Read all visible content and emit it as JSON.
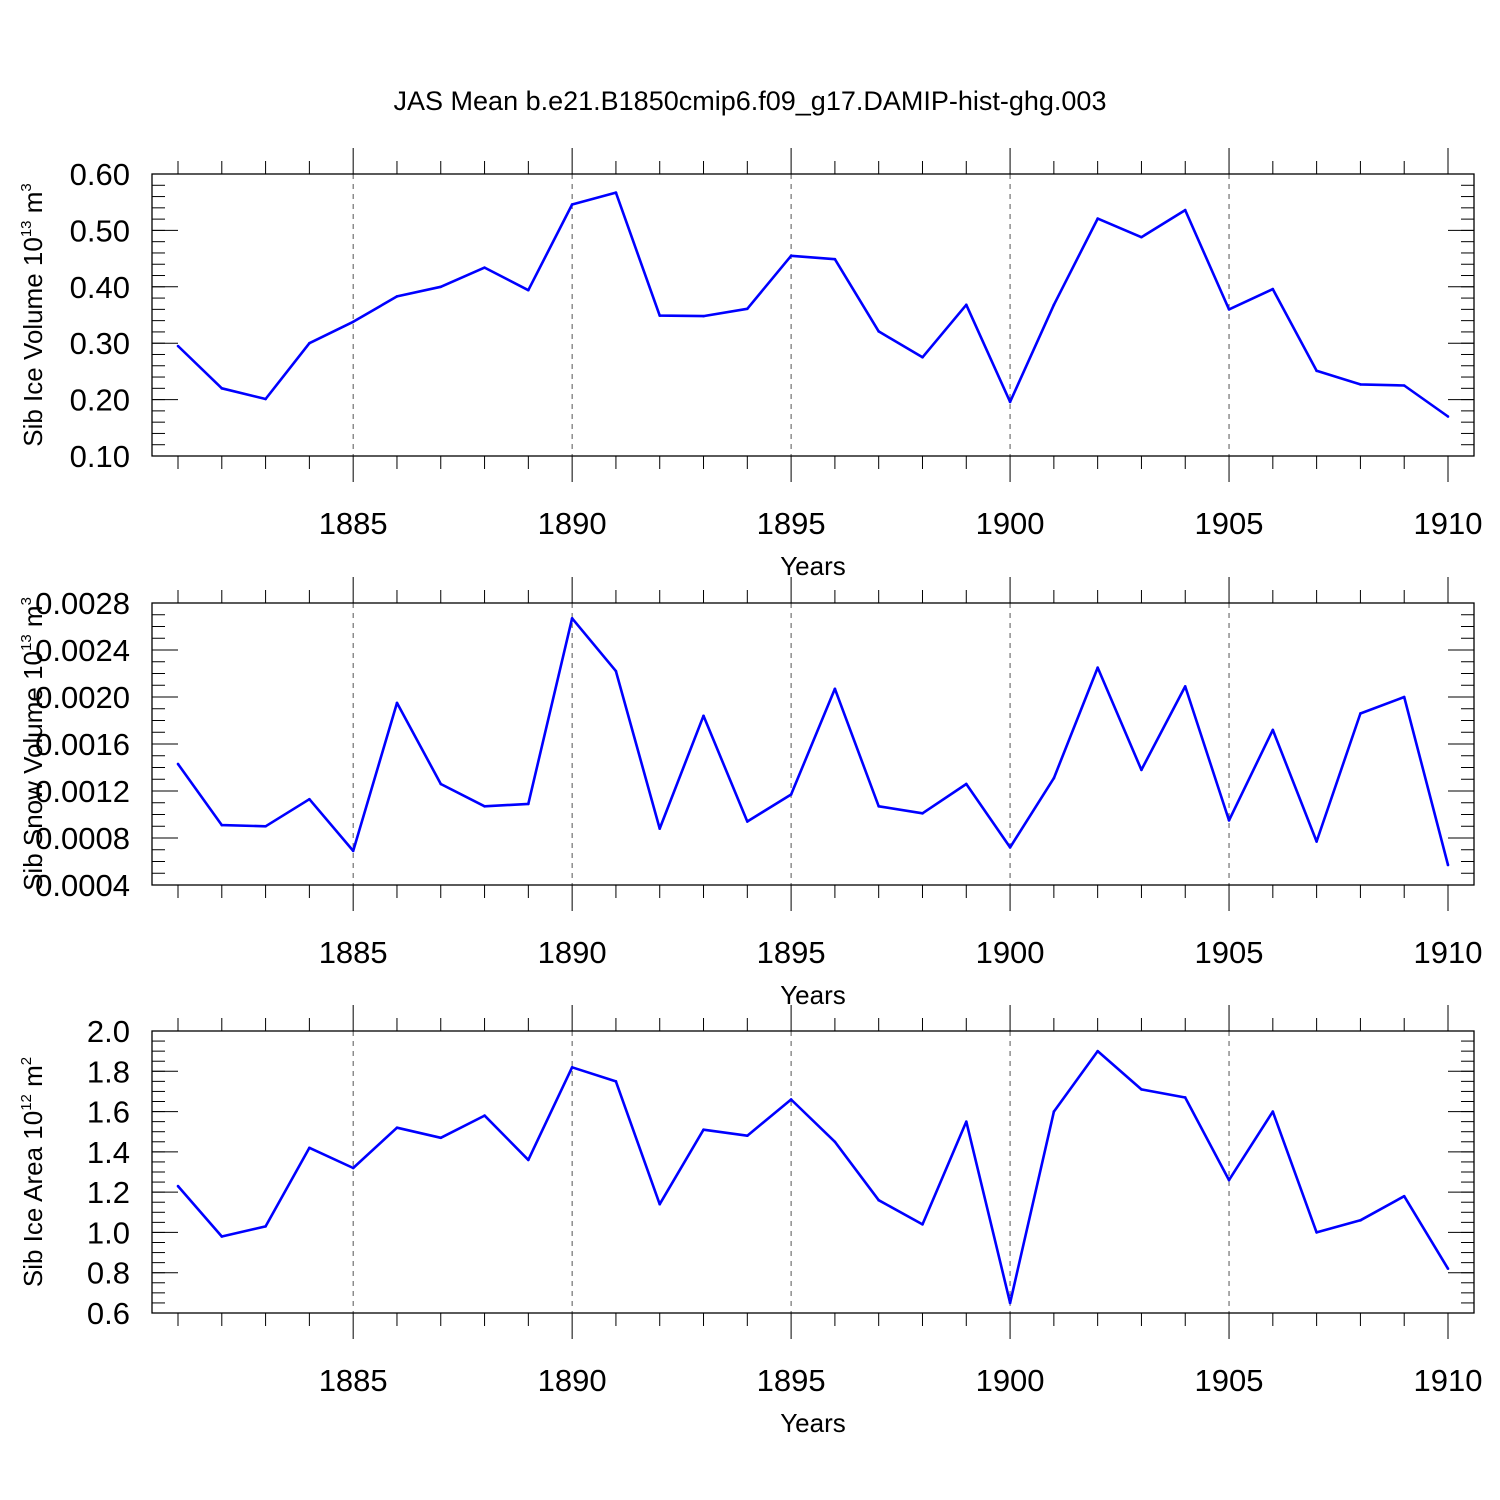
{
  "title": "JAS Mean b.e21.B1850cmip6.f09_g17.DAMIP-hist-ghg.003",
  "colors": {
    "line": "#0000ff",
    "axis": "#000000",
    "grid": "#555555"
  },
  "chart_data": [
    {
      "type": "line",
      "ylabel": "Sib Ice Volume 10",
      "ylabel_sup": "13",
      "ylabel_unit": " m",
      "ylabel_unit_sup": "3",
      "xlabel": "Years",
      "xlim": [
        1881,
        1910
      ],
      "ylim": [
        0.1,
        0.6
      ],
      "xticks": [
        1885,
        1890,
        1895,
        1900,
        1905,
        1910
      ],
      "xtick_labels": [
        "1885",
        "1890",
        "1895",
        "1900",
        "1905",
        "1910"
      ],
      "yticks": [
        0.1,
        0.2,
        0.3,
        0.4,
        0.5,
        0.6
      ],
      "ytick_labels": [
        "0.10",
        "0.20",
        "0.30",
        "0.40",
        "0.50",
        "0.60"
      ],
      "y_minor_step": 0.02,
      "grid": "vertical dashed at major x ticks",
      "x": [
        1881,
        1882,
        1883,
        1884,
        1885,
        1886,
        1887,
        1888,
        1889,
        1890,
        1891,
        1892,
        1893,
        1894,
        1895,
        1896,
        1897,
        1898,
        1899,
        1900,
        1901,
        1902,
        1903,
        1904,
        1905,
        1906,
        1907,
        1908,
        1909,
        1910
      ],
      "values": [
        0.295,
        0.22,
        0.201,
        0.3,
        0.338,
        0.383,
        0.4,
        0.434,
        0.394,
        0.546,
        0.567,
        0.349,
        0.348,
        0.361,
        0.455,
        0.449,
        0.321,
        0.275,
        0.368,
        0.196,
        0.368,
        0.521,
        0.488,
        0.536,
        0.36,
        0.396,
        0.251,
        0.227,
        0.225,
        0.17
      ]
    },
    {
      "type": "line",
      "ylabel": "Sib Snow Volume 10",
      "ylabel_sup": "13",
      "ylabel_unit": " m",
      "ylabel_unit_sup": "3",
      "xlabel": "Years",
      "xlim": [
        1881,
        1910
      ],
      "ylim": [
        0.0004,
        0.0028
      ],
      "xticks": [
        1885,
        1890,
        1895,
        1900,
        1905,
        1910
      ],
      "xtick_labels": [
        "1885",
        "1890",
        "1895",
        "1900",
        "1905",
        "1910"
      ],
      "yticks": [
        0.0004,
        0.0008,
        0.0012,
        0.0016,
        0.002,
        0.0024,
        0.0028
      ],
      "ytick_labels": [
        "0.0004",
        "0.0008",
        "0.0012",
        "0.0016",
        "0.0020",
        "0.0024",
        "0.0028"
      ],
      "y_minor_step": 0.0001,
      "grid": "vertical dashed at major x ticks",
      "x": [
        1881,
        1882,
        1883,
        1884,
        1885,
        1886,
        1887,
        1888,
        1889,
        1890,
        1891,
        1892,
        1893,
        1894,
        1895,
        1896,
        1897,
        1898,
        1899,
        1900,
        1901,
        1902,
        1903,
        1904,
        1905,
        1906,
        1907,
        1908,
        1909,
        1910
      ],
      "values": [
        0.00143,
        0.00091,
        0.0009,
        0.00113,
        0.00069,
        0.00195,
        0.00126,
        0.00107,
        0.00109,
        0.00267,
        0.00222,
        0.00088,
        0.00184,
        0.00094,
        0.00117,
        0.00207,
        0.00107,
        0.00101,
        0.00126,
        0.00072,
        0.00131,
        0.00225,
        0.00138,
        0.00209,
        0.00095,
        0.00172,
        0.00077,
        0.00186,
        0.002,
        0.00057
      ]
    },
    {
      "type": "line",
      "ylabel": "Sib Ice Area 10",
      "ylabel_sup": "12",
      "ylabel_unit": " m",
      "ylabel_unit_sup": "2",
      "xlabel": "Years",
      "xlim": [
        1881,
        1910
      ],
      "ylim": [
        0.6,
        2.0
      ],
      "xticks": [
        1885,
        1890,
        1895,
        1900,
        1905,
        1910
      ],
      "xtick_labels": [
        "1885",
        "1890",
        "1895",
        "1900",
        "1905",
        "1910"
      ],
      "yticks": [
        0.6,
        0.8,
        1.0,
        1.2,
        1.4,
        1.6,
        1.8,
        2.0
      ],
      "ytick_labels": [
        "0.6",
        "0.8",
        "1.0",
        "1.2",
        "1.4",
        "1.6",
        "1.8",
        "2.0"
      ],
      "y_minor_step": 0.05,
      "grid": "vertical dashed at major x ticks",
      "x": [
        1881,
        1882,
        1883,
        1884,
        1885,
        1886,
        1887,
        1888,
        1889,
        1890,
        1891,
        1892,
        1893,
        1894,
        1895,
        1896,
        1897,
        1898,
        1899,
        1900,
        1901,
        1902,
        1903,
        1904,
        1905,
        1906,
        1907,
        1908,
        1909,
        1910
      ],
      "values": [
        1.23,
        0.98,
        1.03,
        1.42,
        1.32,
        1.52,
        1.47,
        1.58,
        1.36,
        1.82,
        1.75,
        1.14,
        1.51,
        1.48,
        1.66,
        1.45,
        1.16,
        1.04,
        1.55,
        0.65,
        1.6,
        1.9,
        1.71,
        1.67,
        1.26,
        1.6,
        1.0,
        1.06,
        1.18,
        0.82
      ]
    }
  ]
}
